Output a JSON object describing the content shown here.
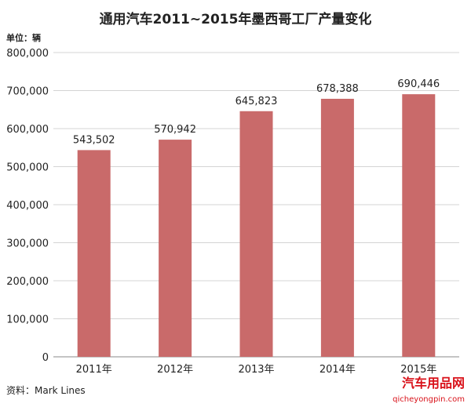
{
  "chart_data": {
    "type": "bar",
    "title": "通用汽车2011~2015年墨西哥工厂产量变化",
    "unit_label": "单位：辆",
    "categories": [
      "2011年",
      "2012年",
      "2013年",
      "2014年",
      "2015年"
    ],
    "values": [
      543502,
      570942,
      645823,
      678388,
      690446
    ],
    "value_labels": [
      "543,502",
      "570,942",
      "645,823",
      "678,388",
      "690,446"
    ],
    "ylim": [
      0,
      800000
    ],
    "yticks": [
      0,
      100000,
      200000,
      300000,
      400000,
      500000,
      600000,
      700000,
      800000
    ],
    "ytick_labels": [
      "0",
      "100,000",
      "200,000",
      "300,000",
      "400,000",
      "500,000",
      "600,000",
      "700,000",
      "800,000"
    ],
    "grid": true,
    "bar_color": "#c96a6a",
    "source": "资料：Mark Lines"
  },
  "watermark": {
    "brand": "汽车用品网",
    "url": "qicheyongpin.com",
    "color": "#d9121a"
  }
}
